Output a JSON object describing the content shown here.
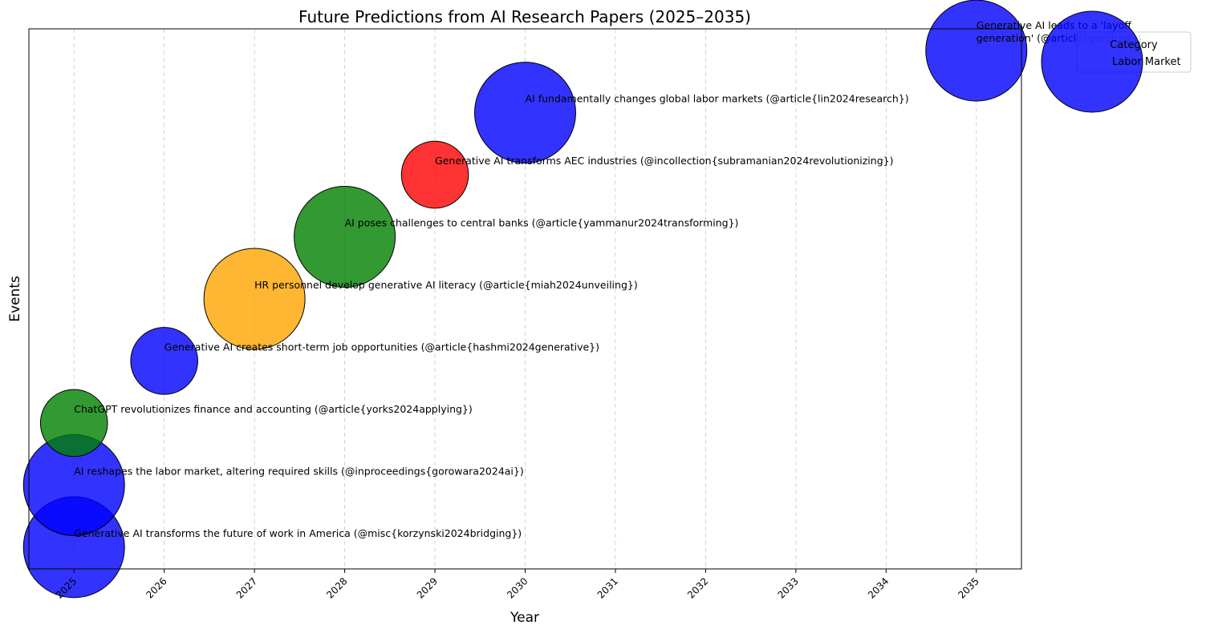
{
  "chart_data": {
    "type": "scatter",
    "title": "Future Predictions from AI Research Papers (2025–2035)",
    "xlabel": "Year",
    "ylabel": "Events",
    "xlim": [
      2024.5,
      2035.5
    ],
    "ylim": [
      -0.35,
      8.35
    ],
    "x_ticks": [
      "2025",
      "2026",
      "2027",
      "2028",
      "2029",
      "2030",
      "2031",
      "2032",
      "2033",
      "2034",
      "2035"
    ],
    "grid": "x-dashed",
    "legend": {
      "title": "Category",
      "entries": [
        "Labor Market"
      ],
      "placement": "upper-right-outside"
    },
    "colors": {
      "Labor Market": "#0000ff",
      "Finance": "#008000",
      "HR": "#ffa500",
      "Industry": "#ff0000"
    },
    "points": [
      {
        "year": 2025,
        "event": "Generative AI transforms the future of work in America (@misc{korzynski2024bridging})",
        "category": "Labor Market",
        "size": 1
      },
      {
        "year": 2025,
        "event": "AI reshapes the labor market, altering required skills (@inproceedings{gorowara2024ai})",
        "category": "Labor Market",
        "size": 1
      },
      {
        "year": 2025,
        "event": "ChatGPT revolutionizes finance and accounting (@article{yorks2024applying})",
        "category": "Finance",
        "size": 0.44
      },
      {
        "year": 2026,
        "event": "Generative AI creates short-term job opportunities (@article{hashmi2024generative})",
        "category": "Labor Market",
        "size": 0.44
      },
      {
        "year": 2027,
        "event": "HR personnel develop generative AI literacy (@article{miah2024unveiling})",
        "category": "HR",
        "size": 1
      },
      {
        "year": 2028,
        "event": "AI poses challenges to central banks (@article{yammanur2024transforming})",
        "category": "Finance",
        "size": 1
      },
      {
        "year": 2029,
        "event": "Generative AI transforms AEC industries (@incollection{subramanian2024revolutionizing})",
        "category": "Industry",
        "size": 0.44
      },
      {
        "year": 2030,
        "event": "AI fundamentally changes global labor markets (@article{lin2024research})",
        "category": "Labor Market",
        "size": 1
      },
      {
        "year": 2035,
        "event": "Generative AI leads to a 'layoff generation' (@article{gofuture})",
        "category": "Labor Market",
        "size": 1,
        "label_lines": [
          "Generative AI leads to a 'layoff",
          "generation' (@article{gofuture})"
        ]
      }
    ]
  }
}
